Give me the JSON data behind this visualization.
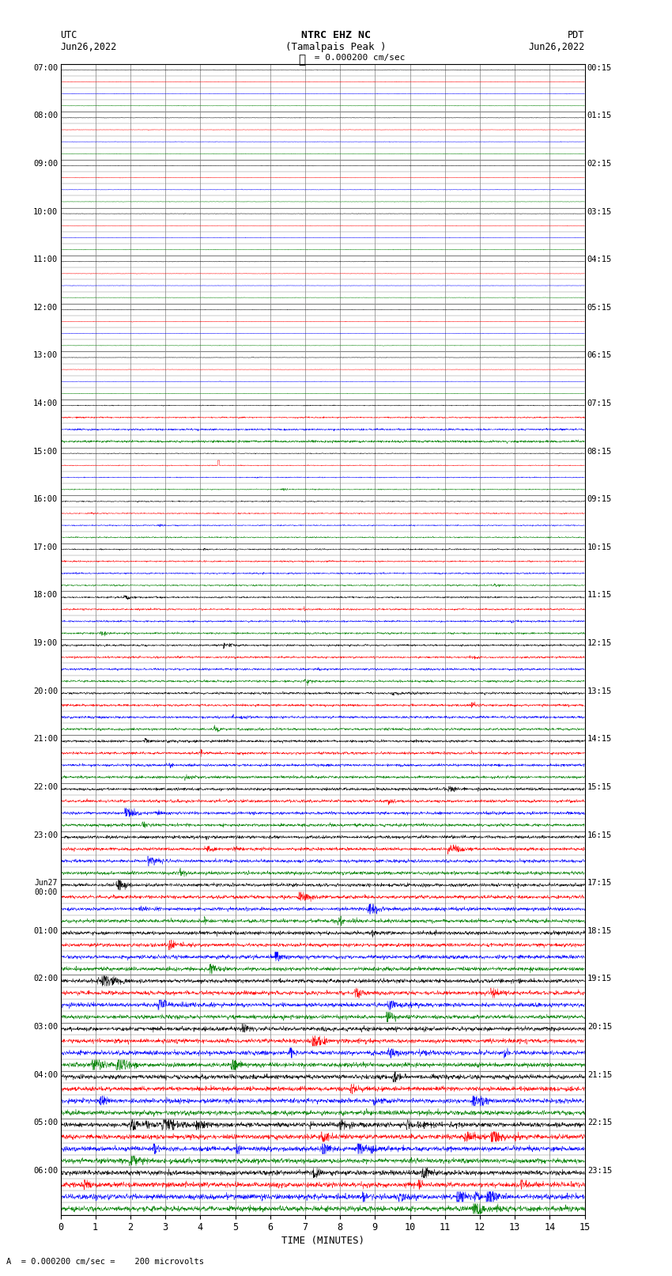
{
  "title_line1": "NTRC EHZ NC",
  "title_line2": "(Tamalpais Peak )",
  "title_line3": "I = 0.000200 cm/sec",
  "left_header_line1": "UTC",
  "left_header_line2": "Jun26,2022",
  "right_header_line1": "PDT",
  "right_header_line2": "Jun26,2022",
  "left_times": [
    "07:00",
    "08:00",
    "09:00",
    "10:00",
    "11:00",
    "12:00",
    "13:00",
    "14:00",
    "15:00",
    "16:00",
    "17:00",
    "18:00",
    "19:00",
    "20:00",
    "21:00",
    "22:00",
    "23:00",
    "Jun27\n00:00",
    "01:00",
    "02:00",
    "03:00",
    "04:00",
    "05:00",
    "06:00"
  ],
  "right_times": [
    "00:15",
    "01:15",
    "02:15",
    "03:15",
    "04:15",
    "05:15",
    "06:15",
    "07:15",
    "08:15",
    "09:15",
    "10:15",
    "11:15",
    "12:15",
    "13:15",
    "14:15",
    "15:15",
    "16:15",
    "17:15",
    "18:15",
    "19:15",
    "20:15",
    "21:15",
    "22:15",
    "23:15"
  ],
  "num_traces": 96,
  "traces_per_hour": 4,
  "xlabel": "TIME (MINUTES)",
  "xticks": [
    0,
    1,
    2,
    3,
    4,
    5,
    6,
    7,
    8,
    9,
    10,
    11,
    12,
    13,
    14,
    15
  ],
  "footnote": "A  = 0.000200 cm/sec =    200 microvolts",
  "background_color": "#ffffff",
  "grid_color": "#808080",
  "trace_colors": [
    "black",
    "red",
    "blue",
    "green"
  ],
  "figsize": [
    8.5,
    16.13
  ],
  "dpi": 100
}
